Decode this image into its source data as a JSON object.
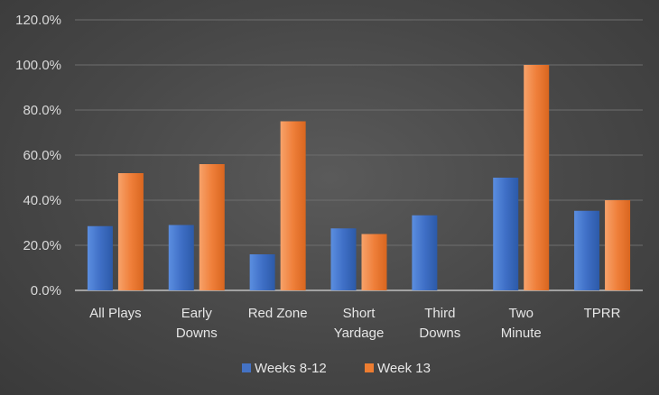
{
  "chart_data": {
    "type": "bar",
    "title": "",
    "xlabel": "",
    "ylabel": "",
    "ylim": [
      0,
      120
    ],
    "y_ticks": [
      "0.0%",
      "20.0%",
      "40.0%",
      "60.0%",
      "80.0%",
      "100.0%",
      "120.0%"
    ],
    "categories": [
      [
        "All Plays"
      ],
      [
        "Early",
        "Downs"
      ],
      [
        "Red Zone"
      ],
      [
        "Short",
        "Yardage"
      ],
      [
        "Third",
        "Downs"
      ],
      [
        "Two",
        "Minute"
      ],
      [
        "TPRR"
      ]
    ],
    "series": [
      {
        "name": "Weeks 8-12",
        "color": "#4472c4",
        "values": [
          28.5,
          29,
          16,
          27.5,
          33.3,
          50,
          35.3
        ]
      },
      {
        "name": "Week 13",
        "color": "#ed7d31",
        "values": [
          52,
          56,
          75,
          25,
          0,
          100,
          40
        ]
      }
    ],
    "grid": true,
    "legend_position": "bottom"
  }
}
